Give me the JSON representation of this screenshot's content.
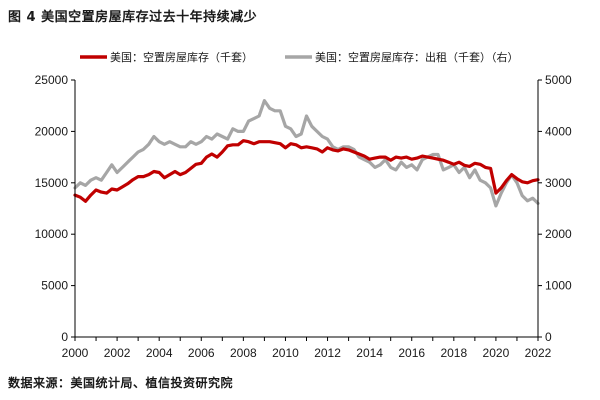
{
  "figure_title": "图 4 美国空置房屋库存过去十年持续减少",
  "source": "数据来源：美国统计局、植信投资研究院",
  "colors": {
    "red": "#c00000",
    "gray": "#a6a6a6",
    "axis": "#000000"
  },
  "chart_data": {
    "type": "line",
    "title": "美国空置房屋库存过去十年持续减少",
    "xlabel": "",
    "ylabel": "",
    "x_ticks": [
      "2000",
      "2002",
      "2004",
      "2006",
      "2008",
      "2010",
      "2012",
      "2014",
      "2016",
      "2018",
      "2020",
      "2022"
    ],
    "xlim": [
      2000,
      2022
    ],
    "ylim_left": [
      0,
      25000
    ],
    "ylim_right": [
      0,
      5000
    ],
    "y_ticks_left": [
      "0",
      "5000",
      "10000",
      "15000",
      "20000",
      "25000"
    ],
    "y_ticks_right": [
      "0",
      "1000",
      "2000",
      "3000",
      "4000",
      "5000"
    ],
    "legend_position": "top",
    "series": [
      {
        "name": "美国：空置房屋库存（千套）",
        "axis": "left",
        "color": "#c00000",
        "x": [
          2000.0,
          2000.25,
          2000.5,
          2000.75,
          2001.0,
          2001.25,
          2001.5,
          2001.75,
          2002.0,
          2002.25,
          2002.5,
          2002.75,
          2003.0,
          2003.25,
          2003.5,
          2003.75,
          2004.0,
          2004.25,
          2004.5,
          2004.75,
          2005.0,
          2005.25,
          2005.5,
          2005.75,
          2006.0,
          2006.25,
          2006.5,
          2006.75,
          2007.0,
          2007.25,
          2007.5,
          2007.75,
          2008.0,
          2008.25,
          2008.5,
          2008.75,
          2009.0,
          2009.25,
          2009.5,
          2009.75,
          2010.0,
          2010.25,
          2010.5,
          2010.75,
          2011.0,
          2011.25,
          2011.5,
          2011.75,
          2012.0,
          2012.25,
          2012.5,
          2012.75,
          2013.0,
          2013.25,
          2013.5,
          2013.75,
          2014.0,
          2014.25,
          2014.5,
          2014.75,
          2015.0,
          2015.25,
          2015.5,
          2015.75,
          2016.0,
          2016.25,
          2016.5,
          2016.75,
          2017.0,
          2017.25,
          2017.5,
          2017.75,
          2018.0,
          2018.25,
          2018.5,
          2018.75,
          2019.0,
          2019.25,
          2019.5,
          2019.75,
          2020.0,
          2020.25,
          2020.5,
          2020.75,
          2021.0,
          2021.25,
          2021.5,
          2021.75,
          2022.0
        ],
        "values": [
          13800,
          13600,
          13200,
          13800,
          14300,
          14100,
          14000,
          14400,
          14300,
          14600,
          14900,
          15300,
          15600,
          15600,
          15800,
          16100,
          16000,
          15500,
          15800,
          16100,
          15800,
          16000,
          16400,
          16800,
          16900,
          17500,
          17800,
          17500,
          18000,
          18600,
          18700,
          18700,
          19100,
          19000,
          18800,
          19000,
          19000,
          19000,
          18900,
          18800,
          18400,
          18800,
          18700,
          18400,
          18500,
          18400,
          18300,
          18000,
          18400,
          18200,
          18100,
          18300,
          18200,
          18000,
          17800,
          17600,
          17300,
          17400,
          17500,
          17500,
          17200,
          17500,
          17400,
          17500,
          17300,
          17400,
          17600,
          17500,
          17400,
          17300,
          17200,
          17000,
          16800,
          17000,
          16700,
          16600,
          16900,
          16800,
          16500,
          16400,
          14000,
          14500,
          15200,
          15800,
          15400,
          15100,
          15000,
          15200,
          15300
        ]
      },
      {
        "name": "美国：空置房屋库存：出租（千套）（右）",
        "axis": "right",
        "color": "#a6a6a6",
        "x": [
          2000.0,
          2000.25,
          2000.5,
          2000.75,
          2001.0,
          2001.25,
          2001.5,
          2001.75,
          2002.0,
          2002.25,
          2002.5,
          2002.75,
          2003.0,
          2003.25,
          2003.5,
          2003.75,
          2004.0,
          2004.25,
          2004.5,
          2004.75,
          2005.0,
          2005.25,
          2005.5,
          2005.75,
          2006.0,
          2006.25,
          2006.5,
          2006.75,
          2007.0,
          2007.25,
          2007.5,
          2007.75,
          2008.0,
          2008.25,
          2008.5,
          2008.75,
          2009.0,
          2009.25,
          2009.5,
          2009.75,
          2010.0,
          2010.25,
          2010.5,
          2010.75,
          2011.0,
          2011.25,
          2011.5,
          2011.75,
          2012.0,
          2012.25,
          2012.5,
          2012.75,
          2013.0,
          2013.25,
          2013.5,
          2013.75,
          2014.0,
          2014.25,
          2014.5,
          2014.75,
          2015.0,
          2015.25,
          2015.5,
          2015.75,
          2016.0,
          2016.25,
          2016.5,
          2016.75,
          2017.0,
          2017.25,
          2017.5,
          2017.75,
          2018.0,
          2018.25,
          2018.5,
          2018.75,
          2019.0,
          2019.25,
          2019.5,
          2019.75,
          2020.0,
          2020.25,
          2020.5,
          2020.75,
          2021.0,
          2021.25,
          2021.5,
          2021.75,
          2022.0
        ],
        "values": [
          2900,
          3000,
          2950,
          3050,
          3100,
          3050,
          3200,
          3350,
          3200,
          3300,
          3400,
          3500,
          3600,
          3650,
          3750,
          3900,
          3800,
          3750,
          3800,
          3750,
          3700,
          3700,
          3800,
          3750,
          3800,
          3900,
          3850,
          3950,
          3900,
          3850,
          4050,
          4000,
          4000,
          4200,
          4250,
          4300,
          4600,
          4450,
          4400,
          4400,
          4100,
          4050,
          3900,
          3950,
          4300,
          4100,
          4000,
          3900,
          3850,
          3700,
          3650,
          3700,
          3700,
          3650,
          3500,
          3450,
          3400,
          3300,
          3350,
          3450,
          3300,
          3250,
          3400,
          3300,
          3350,
          3250,
          3450,
          3500,
          3550,
          3550,
          3250,
          3300,
          3350,
          3200,
          3300,
          3100,
          3250,
          3050,
          3000,
          2900,
          2550,
          2800,
          3000,
          3150,
          3000,
          2750,
          2650,
          2700,
          2600
        ]
      }
    ]
  }
}
